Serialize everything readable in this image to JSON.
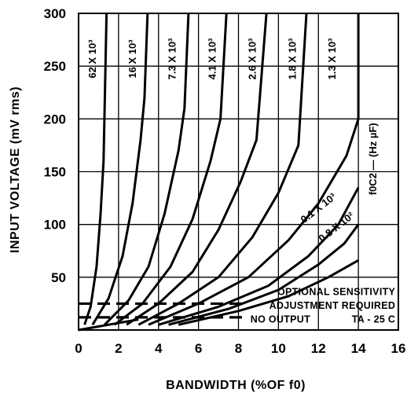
{
  "chart_data": {
    "type": "line",
    "title": "",
    "xlabel": "BANDWIDTH (%OF f0)",
    "ylabel": "INPUT VOLTAGE (mV rms)",
    "xlim": [
      0,
      16
    ],
    "ylim": [
      0,
      300
    ],
    "x_ticks": [
      "0",
      "2",
      "4",
      "6",
      "8",
      "10",
      "12",
      "14",
      "16"
    ],
    "y_ticks": [
      "50",
      "100",
      "150",
      "200",
      "250",
      "300"
    ],
    "grid": true,
    "curve_group_label": "f0C2 — (Hz µF)",
    "series": [
      {
        "name": "62 X 10³",
        "points": [
          [
            0.3,
            5
          ],
          [
            0.6,
            22
          ],
          [
            0.9,
            60
          ],
          [
            1.1,
            110
          ],
          [
            1.25,
            160
          ],
          [
            1.4,
            300
          ]
        ]
      },
      {
        "name": "16 X 10³",
        "points": [
          [
            0.7,
            5
          ],
          [
            1.5,
            30
          ],
          [
            2.2,
            70
          ],
          [
            2.7,
            120
          ],
          [
            3.1,
            180
          ],
          [
            3.3,
            220
          ],
          [
            3.45,
            300
          ]
        ]
      },
      {
        "name": "7.3 X 10³",
        "points": [
          [
            1.3,
            5
          ],
          [
            2.5,
            28
          ],
          [
            3.5,
            60
          ],
          [
            4.3,
            110
          ],
          [
            5,
            170
          ],
          [
            5.3,
            210
          ],
          [
            5.5,
            300
          ]
        ]
      },
      {
        "name": "4.1 X 10³",
        "points": [
          [
            1.8,
            5
          ],
          [
            3.2,
            25
          ],
          [
            4.6,
            60
          ],
          [
            5.7,
            105
          ],
          [
            6.6,
            160
          ],
          [
            7.1,
            200
          ],
          [
            7.4,
            300
          ]
        ]
      },
      {
        "name": "2.6 X 10³",
        "points": [
          [
            2.4,
            5
          ],
          [
            4,
            25
          ],
          [
            5.7,
            55
          ],
          [
            7,
            95
          ],
          [
            8.1,
            140
          ],
          [
            8.9,
            180
          ],
          [
            9.4,
            300
          ]
        ]
      },
      {
        "name": "1.8 X 10³",
        "points": [
          [
            3,
            5
          ],
          [
            5,
            25
          ],
          [
            7,
            50
          ],
          [
            8.7,
            88
          ],
          [
            10,
            130
          ],
          [
            11,
            175
          ],
          [
            11.4,
            300
          ]
        ]
      },
      {
        "name": "1.3 X 10³",
        "points": [
          [
            3.5,
            5
          ],
          [
            6,
            25
          ],
          [
            8.5,
            50
          ],
          [
            10.5,
            85
          ],
          [
            12,
            120
          ],
          [
            13.4,
            165
          ],
          [
            14,
            200
          ],
          [
            14,
            300
          ]
        ]
      },
      {
        "name": "0.1 X 10³",
        "points": [
          [
            4,
            5
          ],
          [
            7,
            22
          ],
          [
            9.5,
            42
          ],
          [
            11.5,
            70
          ],
          [
            13,
            100
          ],
          [
            14,
            135
          ]
        ]
      },
      {
        "name": "0.8 X 10²",
        "points": [
          [
            4.5,
            5
          ],
          [
            7.5,
            20
          ],
          [
            10,
            38
          ],
          [
            12,
            62
          ],
          [
            13.3,
            82
          ],
          [
            14,
            100
          ]
        ]
      },
      {
        "name": "",
        "points": [
          [
            5,
            5
          ],
          [
            8,
            18
          ],
          [
            10.5,
            32
          ],
          [
            12.5,
            50
          ],
          [
            14,
            66
          ]
        ]
      }
    ],
    "reference_lines": [
      {
        "style": "dashed",
        "y": 25,
        "x": [
          0,
          16
        ],
        "label": ""
      },
      {
        "style": "dashed",
        "y": 12,
        "x": [
          0,
          16
        ],
        "label": ""
      }
    ],
    "annotations": [
      {
        "text": "OPTIONAL SENSITIVITY"
      },
      {
        "text": "ADJUSTMENT REQUIRED"
      },
      {
        "text": "NO OUTPUT"
      },
      {
        "text": "TA - 25 C"
      }
    ]
  }
}
